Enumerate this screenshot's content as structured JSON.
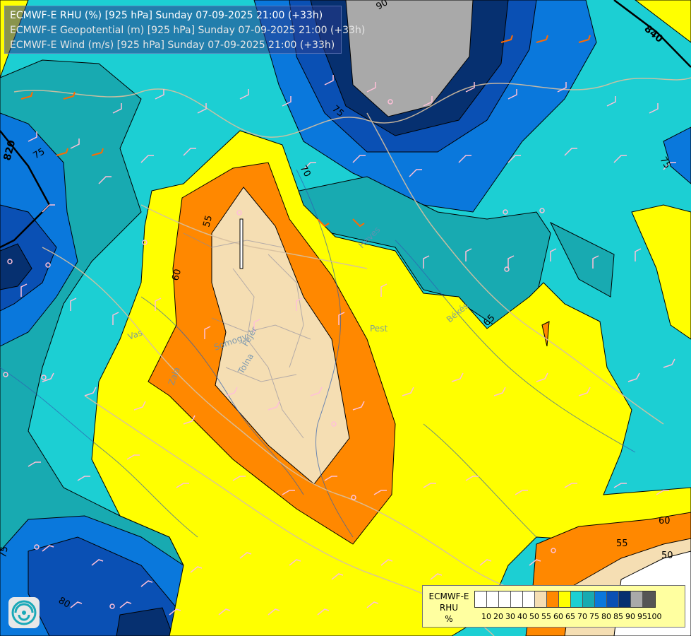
{
  "header": {
    "title_rhu": "ECMWF-E RHU (%) [925 hPa] Sunday 07-09-2025 21:00 (+33h)",
    "title_geopotential": "ECMWF-E Geopotential (m) [925 hPa] Sunday 07-09-2025 21:00 (+33h)",
    "title_wind": "ECMWF-E Wind (m/s) [925 hPa] Sunday 07-09-2025 21:00 (+33h)"
  },
  "legend": {
    "model": "ECMWF-E",
    "variable": "RHU",
    "unit": "%",
    "levels": [
      "10",
      "20",
      "30",
      "40",
      "50",
      "55",
      "60",
      "65",
      "70",
      "75",
      "80",
      "85",
      "90",
      "95",
      "100"
    ],
    "colors": [
      "#ffffff",
      "#ffffff",
      "#ffffff",
      "#ffffff",
      "#ffffff",
      "#f5deb3",
      "#ff8800",
      "#ffff00",
      "#1ccfd3",
      "#18aab1",
      "#0a78dc",
      "#0a50b4",
      "#063070",
      "#a9a9a9",
      "#555555"
    ]
  },
  "contour_labels": {
    "c90": "90",
    "c75_a": "75",
    "c70": "70",
    "c75_b": "75",
    "c55_a": "55",
    "c60_a": "60",
    "c65": "65",
    "c75_c": "75",
    "c60_b": "60",
    "c55_b": "55",
    "c50": "50",
    "c75_d": "75",
    "c80": "80",
    "c75_e": "75"
  },
  "geopotential_labels": {
    "g820": "820",
    "g840": "840"
  },
  "regions": {
    "vas": "Vas",
    "zala": "Zala",
    "somogy": "Somogy",
    "tolna": "Tolna",
    "fejer": "Fejér",
    "pest": "Pest",
    "bekes": "Békés",
    "heves": "Heves"
  },
  "colors": {
    "c50": "#f5deb3",
    "c55": "#ff8800",
    "c60": "#ffff00",
    "c65": "#1ccfd3",
    "c70": "#18aab1",
    "c75": "#0a78dc",
    "c80": "#0a50b4",
    "c85": "#063070",
    "c90": "#a9a9a9",
    "border": "#d8c0a0",
    "barb": "#ffc0d8",
    "barb_strong": "#ff6a00"
  },
  "logo": {
    "icon": "ecmwf-logo-icon"
  }
}
